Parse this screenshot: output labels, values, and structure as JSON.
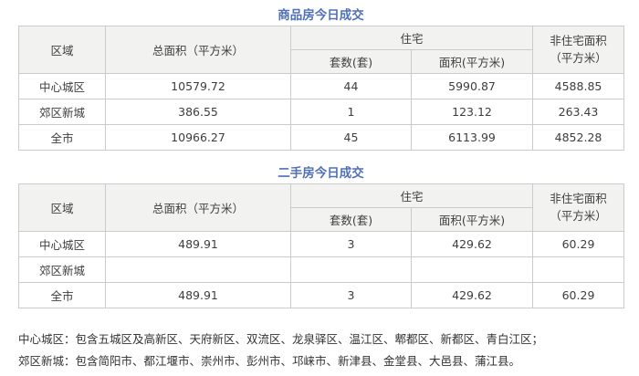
{
  "page": {
    "background": "#ffffff",
    "title_color": "#4f6fb8",
    "header_bg": "#f2f2f0",
    "border_color": "#cbcbcb",
    "text_color": "#3d3d3d"
  },
  "tables": [
    {
      "title": "商品房今日成交",
      "headers": {
        "region": "区域",
        "total_area": "总面积（平方米）",
        "residential_group": "住宅",
        "units": "套数(套)",
        "area": "面积(平方米)",
        "non_residential_line1": "非住宅面积",
        "non_residential_line2": "（平方米）"
      },
      "rows": [
        {
          "region": "中心城区",
          "total_area": "10579.72",
          "units": "44",
          "area": "5990.87",
          "non_residential": "4588.85"
        },
        {
          "region": "郊区新城",
          "total_area": "386.55",
          "units": "1",
          "area": "123.12",
          "non_residential": "263.43"
        },
        {
          "region": "全市",
          "total_area": "10966.27",
          "units": "45",
          "area": "6113.99",
          "non_residential": "4852.28"
        }
      ]
    },
    {
      "title": "二手房今日成交",
      "headers": {
        "region": "区域",
        "total_area": "总面积（平方米）",
        "residential_group": "住宅",
        "units": "套数(套)",
        "area": "面积(平方米)",
        "non_residential_line1": "非住宅面积",
        "non_residential_line2": "（平方米）"
      },
      "rows": [
        {
          "region": "中心城区",
          "total_area": "489.91",
          "units": "3",
          "area": "429.62",
          "non_residential": "60.29"
        },
        {
          "region": "郊区新城",
          "total_area": "",
          "units": "",
          "area": "",
          "non_residential": ""
        },
        {
          "region": "全市",
          "total_area": "489.91",
          "units": "3",
          "area": "429.62",
          "non_residential": "60.29"
        }
      ]
    }
  ],
  "footnotes": [
    "中心城区：包含五城区及高新区、天府新区、双流区、龙泉驿区、温江区、郫都区、新都区、青白江区；",
    "郊区新城：包含简阳市、都江堰市、崇州市、彭州市、邛崃市、新津县、金堂县、大邑县、蒲江县。"
  ]
}
